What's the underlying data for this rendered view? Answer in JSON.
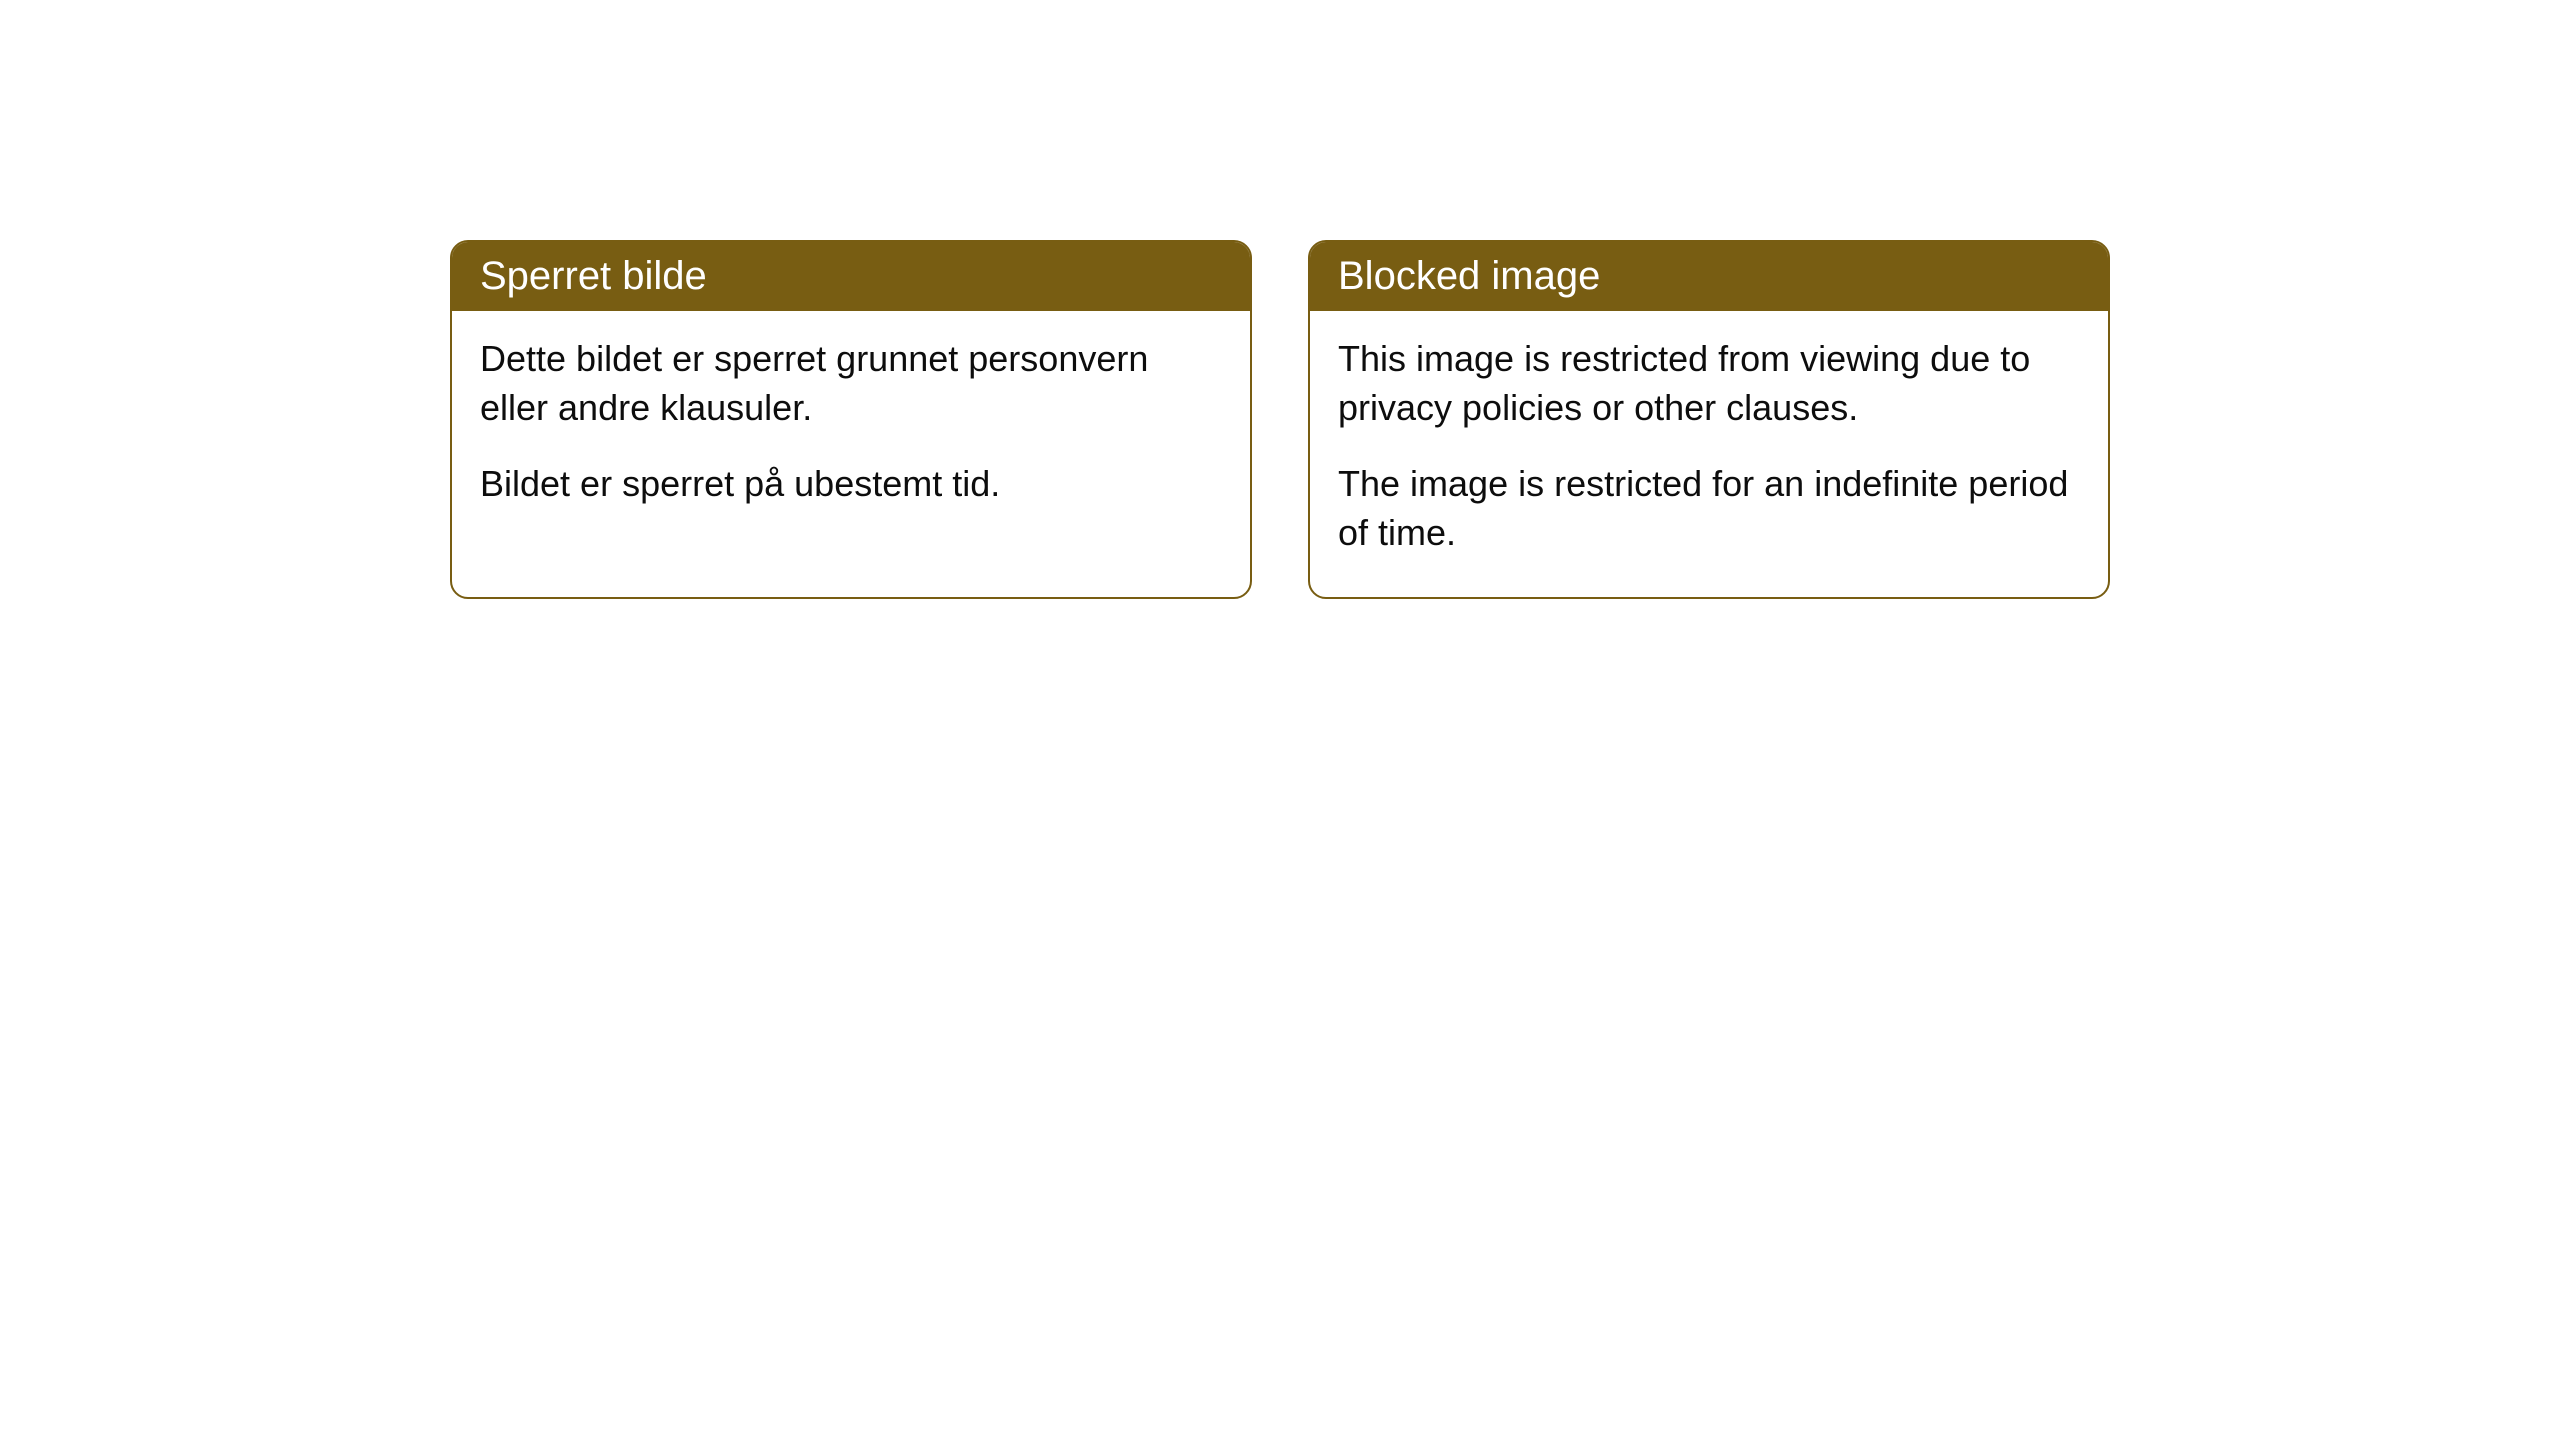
{
  "cards": [
    {
      "title": "Sperret bilde",
      "paragraph1": "Dette bildet er sperret grunnet personvern eller andre klausuler.",
      "paragraph2": "Bildet er sperret på ubestemt tid."
    },
    {
      "title": "Blocked image",
      "paragraph1": "This image is restricted from viewing due to privacy policies or other clauses.",
      "paragraph2": "The image is restricted for an indefinite period of time."
    }
  ],
  "styling": {
    "header_background_color": "#785d12",
    "header_text_color": "#ffffff",
    "border_color": "#785d12",
    "body_background_color": "#ffffff",
    "body_text_color": "#0d0d0d",
    "border_radius": 18,
    "header_fontsize": 40,
    "body_fontsize": 36
  }
}
